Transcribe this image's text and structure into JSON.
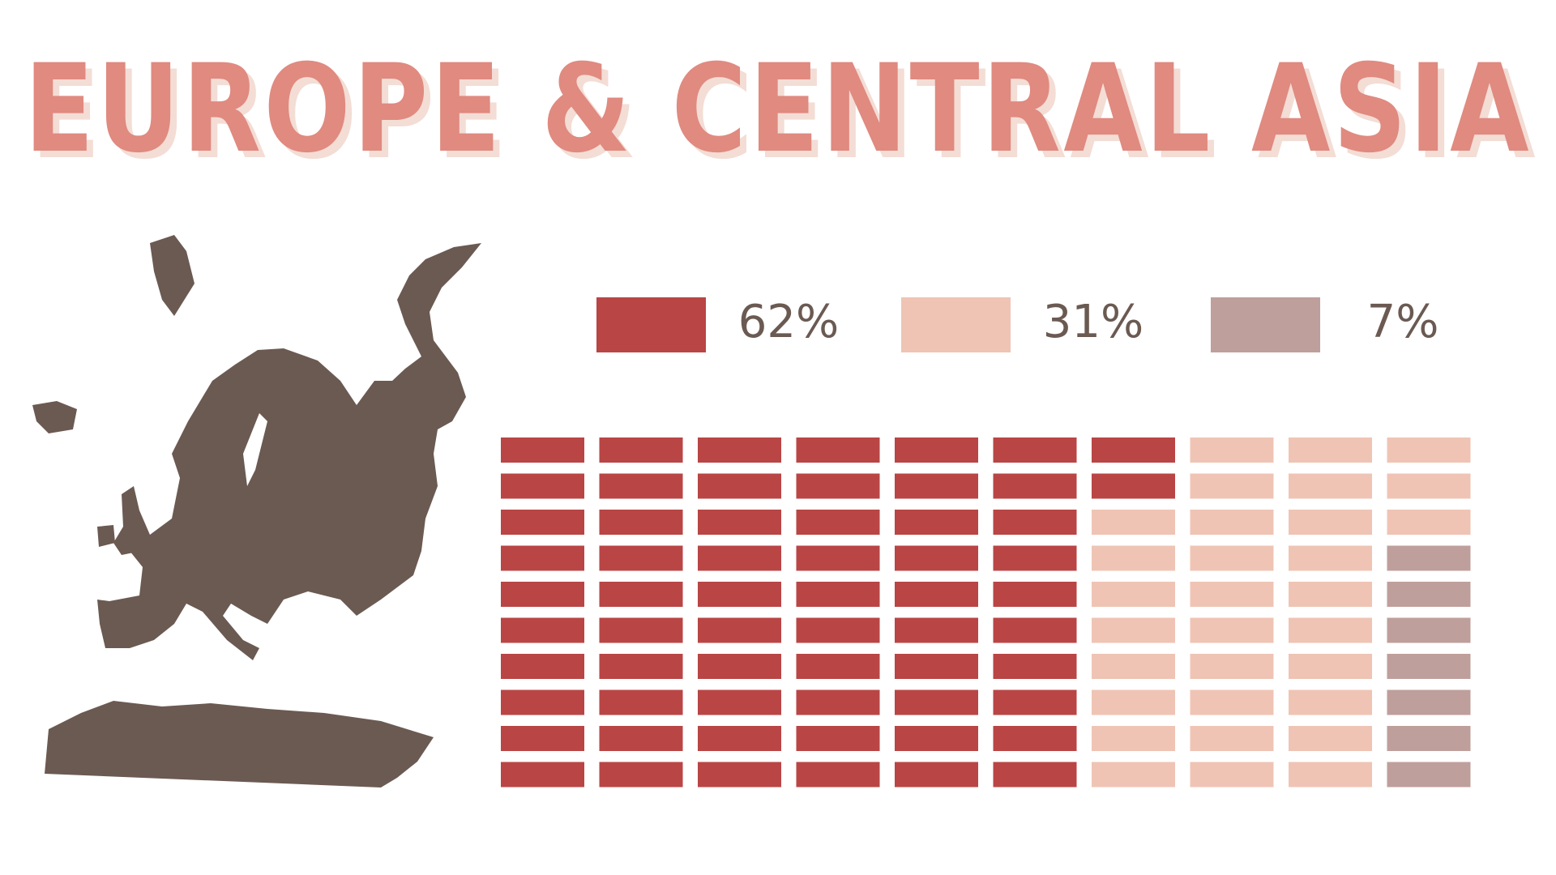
{
  "chart_data": {
    "type": "waffle",
    "title": "EUROPE & CENTRAL ASIA",
    "values": [
      62,
      31,
      7
    ],
    "value_labels": [
      "62%",
      "31%",
      "7%"
    ],
    "colors": [
      "#b94545",
      "#efc4b4",
      "#bf9f9b"
    ],
    "grid_rows": 10,
    "grid_cols": 10
  }
}
